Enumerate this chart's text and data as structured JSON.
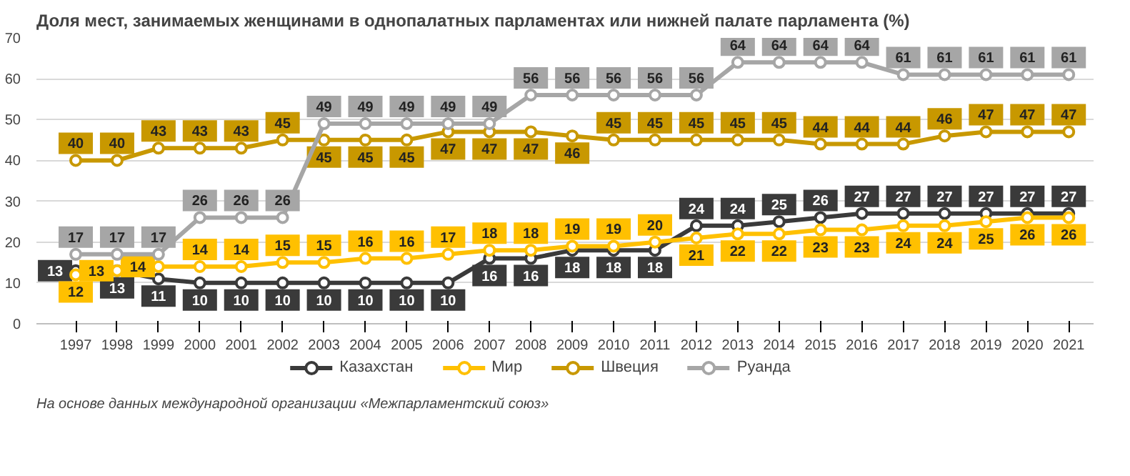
{
  "chart_data": {
    "type": "line",
    "title": "Доля мест, занимаемых женщинами в однопалатных парламентах или нижней палате парламента (%)",
    "categories": [
      "1997",
      "1998",
      "1999",
      "2000",
      "2001",
      "2002",
      "2003",
      "2004",
      "2005",
      "2006",
      "2007",
      "2008",
      "2009",
      "2010",
      "2011",
      "2012",
      "2013",
      "2014",
      "2015",
      "2016",
      "2017",
      "2018",
      "2019",
      "2020",
      "2021"
    ],
    "series": [
      {
        "name": "Казахстан",
        "color": "#3a3a3a",
        "values": [
          13,
          13,
          11,
          10,
          10,
          10,
          10,
          10,
          10,
          10,
          16,
          16,
          18,
          18,
          18,
          24,
          24,
          25,
          26,
          27,
          27,
          27,
          27,
          27,
          27
        ]
      },
      {
        "name": "Мир",
        "color": "#ffc000",
        "values": [
          12,
          13,
          14,
          14,
          14,
          15,
          15,
          16,
          16,
          17,
          18,
          18,
          19,
          19,
          20,
          21,
          22,
          22,
          23,
          23,
          24,
          24,
          25,
          26,
          26
        ]
      },
      {
        "name": "Швеция",
        "color": "#c89800",
        "values": [
          40,
          40,
          43,
          43,
          43,
          45,
          45,
          45,
          45,
          47,
          47,
          47,
          46,
          45,
          45,
          45,
          45,
          45,
          44,
          44,
          44,
          46,
          47,
          47,
          47
        ]
      },
      {
        "name": "Руанда",
        "color": "#a6a6a6",
        "values": [
          17,
          17,
          17,
          26,
          26,
          26,
          49,
          49,
          49,
          49,
          49,
          56,
          56,
          56,
          56,
          56,
          64,
          64,
          64,
          64,
          61,
          61,
          61,
          61,
          61
        ]
      }
    ],
    "ylim": [
      0,
      70
    ],
    "yticks": [
      0,
      10,
      20,
      30,
      40,
      50,
      60,
      70
    ],
    "grid": "y",
    "legend": "bottom",
    "marker": "circle",
    "line_style": "solid",
    "data_labels": true,
    "annotations": [
      "На основе данных международной организации «Межпарламентский союз»"
    ]
  }
}
